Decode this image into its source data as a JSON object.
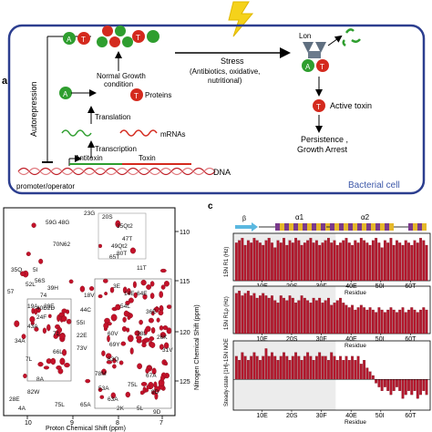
{
  "panel_a": {
    "letter": "a",
    "autorepression": "Autorepression",
    "stress": "Stress",
    "stress_detail_1": "(Antibiotics, oxidative,",
    "stress_detail_2": "nutritional)",
    "lon": "Lon",
    "normal_growth_1": "Normal Growth",
    "normal_growth_2": "condition",
    "proteins": "Proteins",
    "translation": "Translation",
    "mrnas": "mRNAs",
    "transcription": "Transcription",
    "antitoxin": "Antitoxin",
    "toxin": "Toxin",
    "dna": "DNA",
    "promoter": "promoter/operator",
    "active_toxin": "Active toxin",
    "persistence_1": "Persistence ,",
    "persistence_2": "Growth Arrest",
    "bacterial_cell": "Bacterial cell",
    "antitoxin_letter": "A",
    "toxin_letter": "T",
    "colors": {
      "antitoxin": "#2f9e2f",
      "toxin": "#d42a1e",
      "frame": "#2c3e8f",
      "blue_text": "#3c57a8"
    }
  },
  "hsqc": {
    "xlabel": "Proton Chemical Shift (ppm)",
    "ylabel": "Nitrogen Chemical Shift (ppm)",
    "x_ticks": [
      "10",
      "9",
      "8",
      "7"
    ],
    "y_ticks": [
      "110",
      "115",
      "120",
      "125"
    ],
    "labels": [
      "23G",
      "59G",
      "48G",
      "20S",
      "35Qt2",
      "47T",
      "49Qt2",
      "80T",
      "70N62",
      "65T",
      "5I",
      "56S",
      "11T",
      "35Q",
      "52L",
      "39H",
      "3E",
      "57",
      "74",
      "18V",
      "14E",
      "64E",
      "40D2D",
      "54L",
      "19A",
      "29E",
      "24F",
      "44C",
      "36E",
      "43A",
      "55I",
      "22E",
      "71",
      "26K",
      "34A",
      "73V",
      "60V",
      "7L",
      "69Y",
      "66L",
      "38L",
      "31V",
      "83Q",
      "78M",
      "53A",
      "67A",
      "9D",
      "28E",
      "82W",
      "65A",
      "63A",
      "75L",
      "2K",
      "4A",
      "75L",
      "5L",
      "8A",
      "9D"
    ]
  },
  "panel_c": {
    "letter": "c",
    "alpha1": "α1",
    "alpha2": "α2",
    "beta": "β",
    "residue": "Residue",
    "tick_labels": [
      "10E",
      "20S",
      "30F",
      "40E",
      "50I",
      "60T"
    ],
    "r1_ylabel": "15N R1 (Hz)",
    "r2_ylabel": "15N R1ρ (Hz)",
    "noe_ylabel": "Steady-state {1H}-15N NOE",
    "bar_color": "#b3182d"
  },
  "chart_data": [
    {
      "type": "bar",
      "title": "",
      "xlabel": "Residue",
      "ylabel": "15N R1 (Hz)",
      "series": [
        {
          "values": [
            1.6,
            1.7,
            1.8,
            1.5,
            1.7,
            1.6,
            1.8,
            1.7,
            1.6,
            1.5,
            1.7,
            1.8,
            1.6,
            1.4,
            1.7,
            1.6,
            1.8,
            1.5,
            1.7,
            1.6,
            1.8,
            1.7,
            1.5,
            1.6,
            1.7,
            1.8,
            1.6,
            1.7,
            1.5,
            1.6,
            1.7,
            1.8,
            1.6,
            1.7,
            1.5,
            1.6,
            1.7,
            1.8,
            1.6,
            1.5,
            1.7,
            1.6,
            1.8,
            1.7,
            1.6,
            1.5,
            1.7,
            1.8,
            1.6,
            1.4,
            1.7,
            1.6,
            1.8,
            1.5,
            1.7,
            1.6,
            1.5,
            1.7,
            1.6,
            1.5,
            1.7,
            1.6,
            1.8,
            1.7,
            1.5
          ]
        }
      ]
    },
    {
      "type": "bar",
      "title": "",
      "xlabel": "Residue",
      "ylabel": "15N R1ρ (Hz)",
      "series": [
        {
          "values": [
            1.7,
            1.8,
            1.6,
            1.7,
            1.8,
            1.6,
            1.7,
            1.5,
            1.6,
            1.7,
            1.6,
            1.5,
            1.6,
            1.4,
            1.3,
            1.6,
            1.5,
            1.4,
            1.6,
            1.5,
            1.3,
            1.4,
            1.6,
            1.5,
            1.4,
            1.3,
            1.5,
            1.4,
            1.5,
            1.3,
            1.4,
            1.5,
            1.2,
            1.3,
            1.4,
            1.5,
            1.3,
            1.2,
            1.1,
            1.2,
            1.0,
            1.1,
            1.2,
            1.1,
            1.0,
            1.1,
            1.0,
            0.9,
            1.1,
            1.0,
            0.9,
            1.0,
            1.1,
            1.0,
            0.9,
            1.0,
            1.1,
            0.9,
            1.0,
            1.1,
            1.0,
            0.9,
            1.0,
            1.1,
            1.0
          ]
        }
      ]
    },
    {
      "type": "bar",
      "title": "",
      "xlabel": "Residue",
      "ylabel": "Steady-state {1H}-15N NOE",
      "series": [
        {
          "values": [
            0.6,
            0.5,
            0.7,
            0.6,
            0.5,
            0.6,
            0.7,
            0.6,
            0.5,
            0.6,
            0.8,
            0.6,
            0.7,
            0.6,
            0.5,
            0.6,
            0.7,
            0.6,
            0.5,
            0.6,
            0.7,
            0.6,
            0.5,
            0.6,
            0.7,
            0.6,
            0.5,
            0.6,
            0.7,
            0.6,
            0.6,
            0.5,
            0.7,
            0.6,
            0.5,
            0.6,
            0.5,
            0.6,
            0.5,
            0.6,
            0.5,
            0.6,
            0.4,
            0.5,
            0.3,
            0.2,
            0.1,
            -0.1,
            -0.2,
            -0.3,
            -0.2,
            -0.3,
            -0.4,
            -0.3,
            -0.2,
            -0.3,
            -0.5,
            -0.4,
            -0.3,
            -0.4,
            -0.3,
            -0.5,
            -0.4,
            -0.3,
            -0.4
          ]
        }
      ]
    }
  ]
}
